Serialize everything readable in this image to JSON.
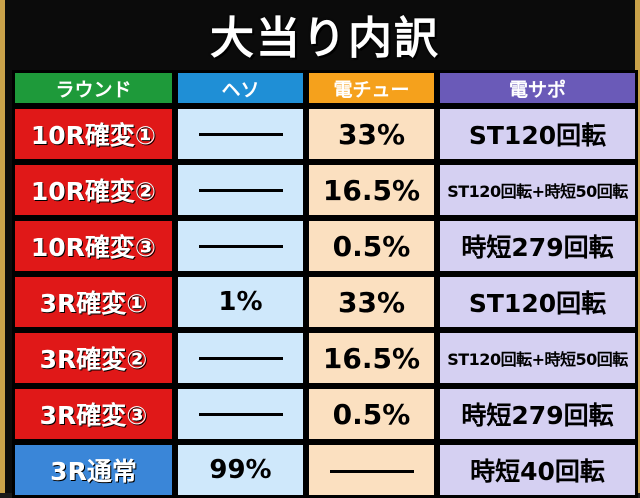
{
  "title": "大当り内訳",
  "headers": {
    "round": "ラウンド",
    "heso": "ヘソ",
    "denchu": "電チュー",
    "densapo": "電サポ"
  },
  "rows": [
    {
      "round": "10R確変①",
      "heso": "",
      "denchu": "33%",
      "densapo": "ST120回転",
      "normal": false,
      "densapo_small": false
    },
    {
      "round": "10R確変②",
      "heso": "",
      "denchu": "16.5%",
      "densapo": "ST120回転+時短50回転",
      "normal": false,
      "densapo_small": true
    },
    {
      "round": "10R確変③",
      "heso": "",
      "denchu": "0.5%",
      "densapo": "時短279回転",
      "normal": false,
      "densapo_small": false
    },
    {
      "round": "3R確変①",
      "heso": "1%",
      "denchu": "33%",
      "densapo": "ST120回転",
      "normal": false,
      "densapo_small": false
    },
    {
      "round": "3R確変②",
      "heso": "",
      "denchu": "16.5%",
      "densapo": "ST120回転+時短50回転",
      "normal": false,
      "densapo_small": true
    },
    {
      "round": "3R確変③",
      "heso": "",
      "denchu": "0.5%",
      "densapo": "時短279回転",
      "normal": false,
      "densapo_small": false
    },
    {
      "round": "3R通常",
      "heso": "99%",
      "denchu": "",
      "densapo": "時短40回転",
      "normal": true,
      "densapo_small": false
    }
  ]
}
